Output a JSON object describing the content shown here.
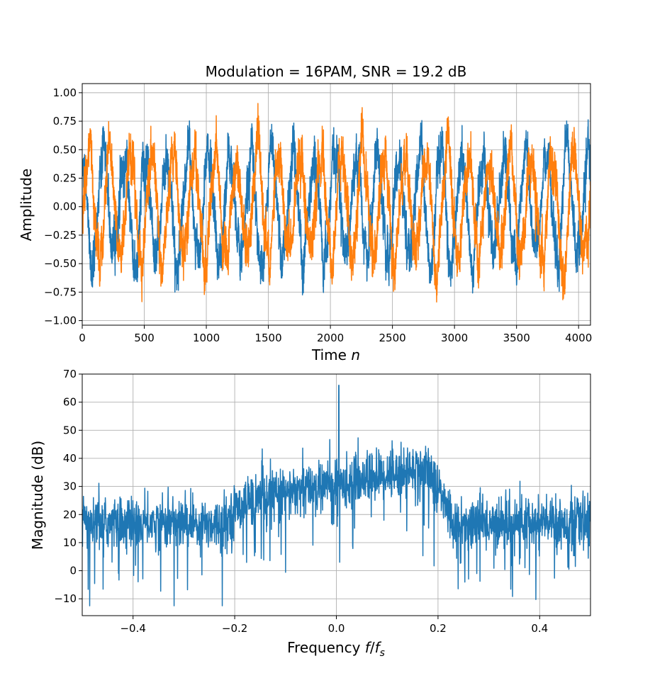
{
  "chart_data": [
    {
      "type": "line",
      "title": "Modulation = 16PAM, SNR = 19.2 dB",
      "xlabel": "Time ",
      "xlabel_var": "n",
      "ylabel": "Amplitude",
      "xlim": [
        0,
        4096
      ],
      "ylim": [
        -1.04,
        1.08
      ],
      "xticks": [
        0,
        500,
        1000,
        1500,
        2000,
        2500,
        3000,
        3500,
        4000
      ],
      "xtick_labels": [
        "0",
        "500",
        "1000",
        "1500",
        "2000",
        "2500",
        "3000",
        "3500",
        "4000"
      ],
      "yticks": [
        -1.0,
        -0.75,
        -0.5,
        -0.25,
        0.0,
        0.25,
        0.5,
        0.75,
        1.0
      ],
      "ytick_labels": [
        "−1.00",
        "−0.75",
        "−0.50",
        "−0.25",
        "0.00",
        "0.25",
        "0.50",
        "0.75",
        "1.00"
      ],
      "grid": true,
      "series": [
        {
          "color": "#1f77b4",
          "description": "in-phase component, noisy 16PAM waveform on carrier",
          "n_points": 4096,
          "carrier_period": 170,
          "envelope_min": -0.95,
          "envelope_max": 0.95
        },
        {
          "color": "#ff7f0e",
          "description": "quadrature component, noisy 16PAM waveform on carrier",
          "n_points": 4096,
          "carrier_period": 170,
          "envelope_min": -0.95,
          "envelope_max": 1.0
        }
      ]
    },
    {
      "type": "line",
      "xlabel": "Frequency ",
      "xlabel_var": "f",
      "xlabel_over": "f",
      "xlabel_sub": "s",
      "ylabel": "Magnitude (dB)",
      "xlim": [
        -0.5,
        0.5
      ],
      "ylim": [
        -16,
        70
      ],
      "xticks": [
        -0.4,
        -0.2,
        0.0,
        0.2,
        0.4
      ],
      "xtick_labels": [
        "−0.4",
        "−0.2",
        "0.0",
        "0.2",
        "0.4"
      ],
      "yticks": [
        -10,
        0,
        10,
        20,
        30,
        40,
        50,
        60,
        70
      ],
      "ytick_labels": [
        "−10",
        "0",
        "10",
        "20",
        "30",
        "40",
        "50",
        "60",
        "70"
      ],
      "grid": true,
      "series": [
        {
          "color": "#1f77b4",
          "description": "magnitude spectrum",
          "spectral_peak": {
            "x": 0.005,
            "y": 66
          },
          "passband": [
            -0.2,
            0.2
          ],
          "passband_level_left": 25,
          "passband_level_right": 33,
          "stopband_level": 17
        }
      ]
    }
  ]
}
